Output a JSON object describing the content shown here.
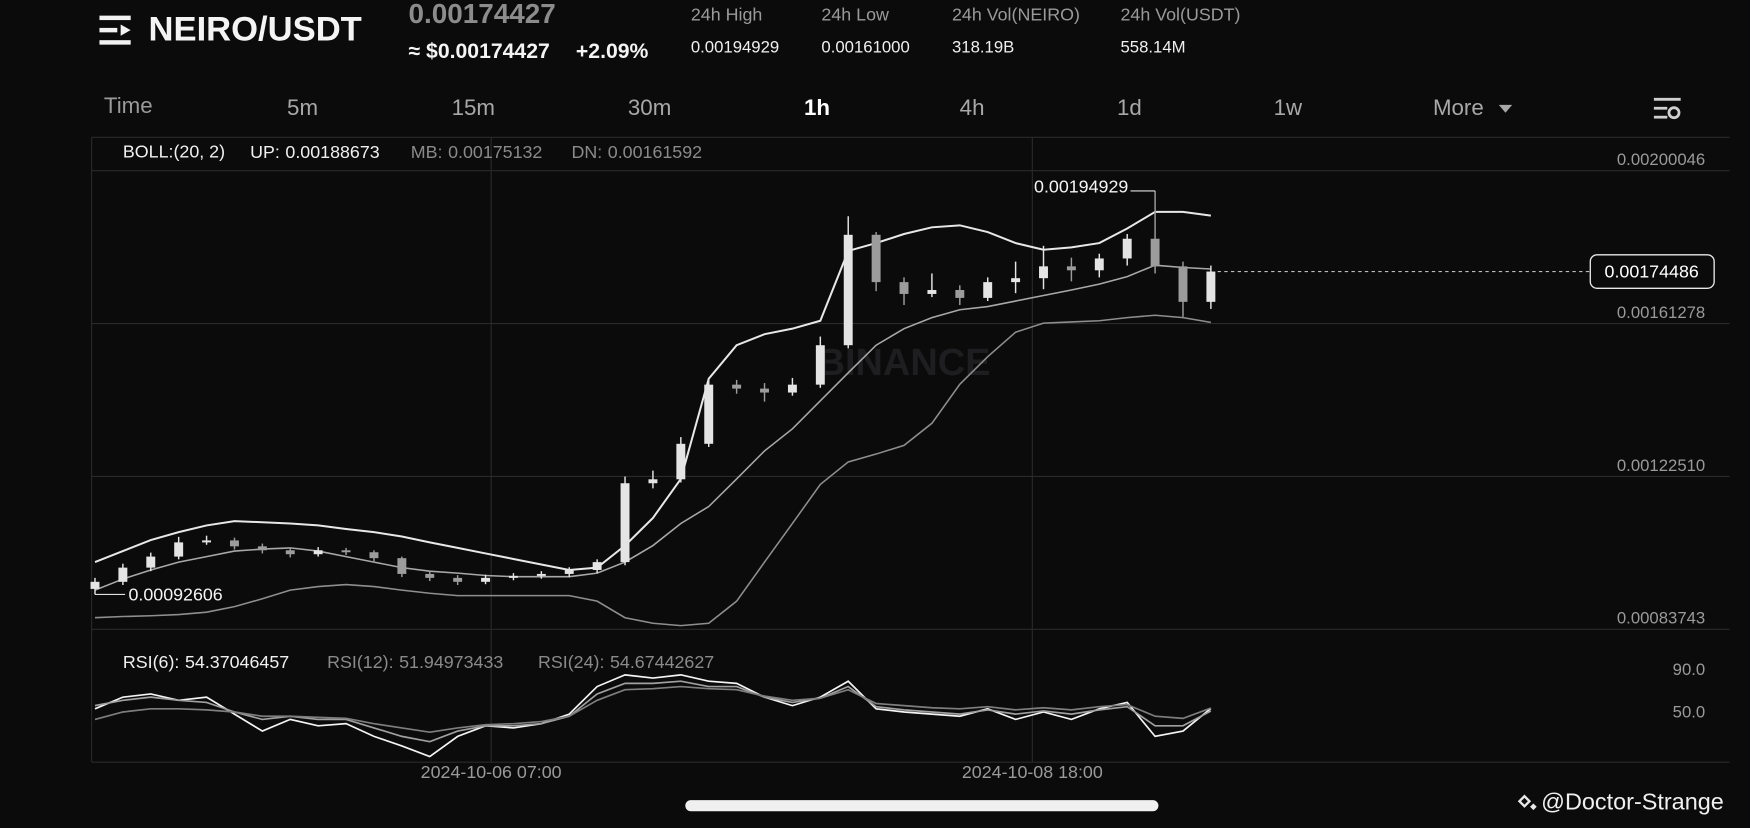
{
  "header": {
    "pair": "NEIRO/USDT",
    "price": "0.00174427",
    "price_usd": "≈ $0.00174427",
    "change": "+2.09%",
    "stats": [
      {
        "label": "24h High",
        "value": "0.00194929"
      },
      {
        "label": "24h Low",
        "value": "0.00161000"
      },
      {
        "label": "24h Vol(NEIRO)",
        "value": "318.19B"
      },
      {
        "label": "24h Vol(USDT)",
        "value": "558.14M"
      }
    ]
  },
  "tabs": [
    "Time",
    "5m",
    "15m",
    "30m",
    "1h",
    "4h",
    "1d",
    "1w",
    "More"
  ],
  "chart_data": [
    {
      "type": "candlestick",
      "title": "BOLL:(20, 2)",
      "up_color": "#e4e4e4",
      "down_color": "#9c9c9c",
      "ohlc": [
        [
          0.00094,
          0.000968,
          0.00092606,
          0.000958
        ],
        [
          0.000958,
          0.001004,
          0.00095,
          0.000994
        ],
        [
          0.000994,
          0.001032,
          0.000985,
          0.001022
        ],
        [
          0.001022,
          0.001072,
          0.001015,
          0.001058
        ],
        [
          0.001058,
          0.001075,
          0.001052,
          0.001063
        ],
        [
          0.001063,
          0.00107,
          0.00104,
          0.001048
        ],
        [
          0.001048,
          0.001055,
          0.00103,
          0.001038
        ],
        [
          0.001038,
          0.001045,
          0.00102,
          0.001028
        ],
        [
          0.001028,
          0.001046,
          0.001022,
          0.001038
        ],
        [
          0.001038,
          0.001044,
          0.001026,
          0.001033
        ],
        [
          0.001033,
          0.001038,
          0.00101,
          0.001018
        ],
        [
          0.001018,
          0.001022,
          0.00097,
          0.000978
        ],
        [
          0.000978,
          0.000985,
          0.00096,
          0.000968
        ],
        [
          0.000968,
          0.000975,
          0.00095,
          0.000958
        ],
        [
          0.000958,
          0.000976,
          0.000952,
          0.000968
        ],
        [
          0.000968,
          0.00098,
          0.000962,
          0.000973
        ],
        [
          0.000973,
          0.000985,
          0.000966,
          0.000978
        ],
        [
          0.000978,
          0.000995,
          0.00097,
          0.000988
        ],
        [
          0.000988,
          0.001015,
          0.00098,
          0.001008
        ],
        [
          0.001008,
          0.001225,
          0.001,
          0.001208
        ],
        [
          0.001208,
          0.00124,
          0.001195,
          0.001218
        ],
        [
          0.001218,
          0.001325,
          0.00121,
          0.001308
        ],
        [
          0.001308,
          0.001475,
          0.0013,
          0.001458
        ],
        [
          0.001458,
          0.00147,
          0.001435,
          0.001448
        ],
        [
          0.001448,
          0.001462,
          0.001415,
          0.001438
        ],
        [
          0.001438,
          0.001475,
          0.00143,
          0.001458
        ],
        [
          0.001458,
          0.00158,
          0.00145,
          0.001558
        ],
        [
          0.001558,
          0.001885,
          0.00155,
          0.001838
        ],
        [
          0.001838,
          0.001845,
          0.001695,
          0.001718
        ],
        [
          0.001718,
          0.00173,
          0.00166,
          0.001688
        ],
        [
          0.001688,
          0.00174,
          0.00168,
          0.001698
        ],
        [
          0.001698,
          0.00171,
          0.00166,
          0.001678
        ],
        [
          0.001678,
          0.00173,
          0.00167,
          0.001718
        ],
        [
          0.001718,
          0.00177,
          0.00169,
          0.001728
        ],
        [
          0.001728,
          0.00181,
          0.0017,
          0.001758
        ],
        [
          0.001758,
          0.00178,
          0.00172,
          0.001748
        ],
        [
          0.001748,
          0.00179,
          0.00173,
          0.001778
        ],
        [
          0.001778,
          0.00184,
          0.00176,
          0.001828
        ],
        [
          0.001828,
          0.00194929,
          0.00174,
          0.001758
        ],
        [
          0.001758,
          0.00177,
          0.00163,
          0.001668
        ],
        [
          0.001668,
          0.00176,
          0.00165,
          0.00174486
        ]
      ],
      "bands": [
        {
          "name": "UP:",
          "color": "#e8e8e8",
          "values": [
            0.001008,
            0.001036,
            0.001064,
            0.001084,
            0.001101,
            0.001112,
            0.001109,
            0.001106,
            0.001101,
            0.001092,
            0.001084,
            0.001073,
            0.001058,
            0.001044,
            0.00103,
            0.001016,
            0.001002,
            0.000988,
            0.000994,
            0.00105,
            0.00112,
            0.001219,
            0.001473,
            0.001558,
            0.001586,
            0.0016,
            0.00162,
            0.001797,
            0.001817,
            0.00184,
            0.001857,
            0.001862,
            0.001845,
            0.001817,
            0.0018,
            0.001806,
            0.001817,
            0.001854,
            0.001896,
            0.001896,
            0.00188673
          ]
        },
        {
          "name": "MB:",
          "color": "#a8a8a8",
          "values": [
            0.000937,
            0.000965,
            0.000988,
            0.001008,
            0.001022,
            0.001036,
            0.001041,
            0.001044,
            0.001036,
            0.001022,
            0.001008,
            0.000994,
            0.000985,
            0.00098,
            0.000974,
            0.000971,
            0.000971,
            0.000971,
            0.00098,
            0.001008,
            0.00105,
            0.001106,
            0.001149,
            0.001219,
            0.00129,
            0.001346,
            0.001417,
            0.001488,
            0.001558,
            0.0016,
            0.001628,
            0.001648,
            0.001656,
            0.00167,
            0.001684,
            0.001698,
            0.001713,
            0.001732,
            0.001761,
            0.001755,
            0.00175132
          ]
        },
        {
          "name": "DN:",
          "color": "#8e8e8e",
          "values": [
            0.000867,
            0.00087,
            0.000872,
            0.000875,
            0.000881,
            0.000895,
            0.000915,
            0.000937,
            0.000946,
            0.000951,
            0.000946,
            0.000937,
            0.000929,
            0.000923,
            0.000923,
            0.000923,
            0.000923,
            0.000923,
            0.000909,
            0.000867,
            0.000853,
            0.000847,
            0.000853,
            0.000909,
            0.001008,
            0.001106,
            0.001205,
            0.001262,
            0.001282,
            0.001304,
            0.00136,
            0.001459,
            0.001529,
            0.001591,
            0.001614,
            0.001617,
            0.00162,
            0.001628,
            0.001634,
            0.001628,
            0.00161592
          ]
        }
      ],
      "ylim": [
        0.00083743,
        0.0020797
      ],
      "yticks": [
        0.00200046,
        0.00161278,
        {
          "value": 0.0012251,
          "label": "0.00122510"
        },
        0.00083743
      ],
      "xlim": [
        -0.5,
        40.5
      ],
      "xticks": [
        {
          "value": 14.2,
          "label": "2024-10-06 07:00"
        },
        {
          "value": 33.6,
          "label": "2024-10-08 18:00"
        }
      ],
      "grid": true
    },
    {
      "type": "line",
      "series": [
        {
          "name": "RSI(6):",
          "color": "#f4f4f4",
          "values": [
            54,
            65,
            68,
            62,
            65,
            49,
            33,
            44,
            38,
            40,
            28,
            19,
            9,
            28,
            38,
            36,
            40,
            49,
            75,
            86,
            83,
            86,
            80,
            78,
            65,
            57,
            65,
            80,
            54,
            51,
            49,
            47,
            54,
            44,
            51,
            44,
            54,
            60,
            28,
            33,
            54.37046457
          ]
        },
        {
          "name": "RSI(12):",
          "color": "#a0a0a0",
          "values": [
            57,
            62,
            65,
            62,
            60,
            51,
            44,
            47,
            44,
            44,
            36,
            28,
            23,
            33,
            38,
            38,
            40,
            47,
            68,
            78,
            78,
            80,
            75,
            75,
            65,
            60,
            64,
            75,
            56,
            53,
            51,
            49,
            53,
            49,
            52,
            49,
            53,
            56,
            38,
            38,
            51.94973433
          ]
        },
        {
          "name": "RSI(24):",
          "color": "#7e7e7e",
          "values": [
            44,
            51,
            54,
            54,
            53,
            51,
            47,
            47,
            46,
            45,
            40,
            36,
            32,
            36,
            39,
            40,
            42,
            47,
            62,
            72,
            73,
            75,
            73,
            72,
            66,
            62,
            64,
            72,
            59,
            57,
            55,
            54,
            56,
            53,
            55,
            53,
            56,
            58,
            47,
            45,
            54.67442627
          ]
        }
      ],
      "xlim": [
        -0.5,
        40.5
      ],
      "ylim": [
        3.7,
        106.8
      ],
      "yticks": [
        {
          "value": 90,
          "label": "90.0"
        },
        {
          "value": 50,
          "label": "50.0"
        }
      ],
      "grid": false
    }
  ],
  "watermark": "BINANCE",
  "credit": "@Doctor-Strange"
}
